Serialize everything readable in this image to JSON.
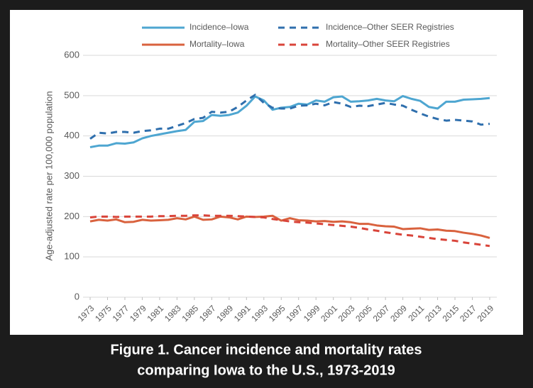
{
  "chart_data": {
    "type": "line",
    "y_label": "Age-adjusted rate per 100,000 population",
    "caption": [
      "Figure 1. Cancer incidence and mortality rates",
      "comparing Iowa to the U.S., 1973-2019"
    ],
    "x": [
      1973,
      1974,
      1975,
      1976,
      1977,
      1978,
      1979,
      1980,
      1981,
      1982,
      1983,
      1984,
      1985,
      1986,
      1987,
      1988,
      1989,
      1990,
      1991,
      1992,
      1993,
      1994,
      1995,
      1996,
      1997,
      1998,
      1999,
      2000,
      2001,
      2002,
      2003,
      2004,
      2005,
      2006,
      2007,
      2008,
      2009,
      2010,
      2011,
      2012,
      2013,
      2014,
      2015,
      2016,
      2017,
      2018,
      2019
    ],
    "xlim": [
      1973,
      2019
    ],
    "xticks": [
      1973,
      1975,
      1977,
      1979,
      1981,
      1983,
      1985,
      1987,
      1989,
      1991,
      1993,
      1995,
      1997,
      1999,
      2001,
      2003,
      2005,
      2007,
      2009,
      2011,
      2013,
      2015,
      2017,
      2019
    ],
    "ylim": [
      0,
      600
    ],
    "yticks": [
      0,
      100,
      200,
      300,
      400,
      500,
      600
    ],
    "grid": true,
    "legend": "top",
    "series": [
      {
        "name": "Incidence–Iowa",
        "color": "#4ea6d1",
        "dashed": false,
        "values": [
          372,
          376,
          376,
          382,
          381,
          384,
          394,
          400,
          404,
          408,
          412,
          415,
          435,
          437,
          452,
          450,
          452,
          458,
          475,
          498,
          488,
          465,
          470,
          472,
          480,
          478,
          488,
          485,
          496,
          498,
          485,
          486,
          488,
          492,
          488,
          486,
          499,
          492,
          487,
          472,
          468,
          485,
          485,
          490,
          491,
          492,
          494
        ]
      },
      {
        "name": "Incidence–Other SEER Registries",
        "color": "#2f6fad",
        "dashed": true,
        "values": [
          393,
          408,
          406,
          410,
          410,
          408,
          412,
          414,
          418,
          418,
          425,
          432,
          442,
          445,
          460,
          458,
          460,
          472,
          488,
          502,
          482,
          470,
          468,
          468,
          475,
          476,
          480,
          476,
          484,
          480,
          472,
          475,
          474,
          478,
          482,
          478,
          475,
          465,
          456,
          448,
          442,
          438,
          440,
          438,
          436,
          428,
          430
        ]
      },
      {
        "name": "Mortality–Iowa",
        "color": "#d9623e",
        "dashed": false,
        "values": [
          188,
          192,
          190,
          193,
          186,
          187,
          192,
          190,
          191,
          192,
          196,
          193,
          200,
          192,
          193,
          200,
          198,
          193,
          200,
          199,
          200,
          202,
          190,
          196,
          191,
          190,
          188,
          189,
          187,
          188,
          186,
          182,
          182,
          178,
          176,
          175,
          169,
          170,
          171,
          167,
          168,
          165,
          164,
          160,
          157,
          153,
          147
        ]
      },
      {
        "name": "Mortality–Other SEER Registries",
        "color": "#d9443a",
        "dashed": true,
        "values": [
          198,
          200,
          200,
          199,
          200,
          200,
          200,
          200,
          201,
          201,
          202,
          202,
          203,
          203,
          202,
          202,
          202,
          201,
          200,
          199,
          198,
          194,
          191,
          188,
          186,
          185,
          183,
          181,
          179,
          177,
          175,
          172,
          168,
          165,
          161,
          158,
          155,
          153,
          150,
          147,
          144,
          142,
          140,
          136,
          133,
          130,
          127
        ]
      }
    ]
  }
}
